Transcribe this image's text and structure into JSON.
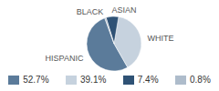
{
  "chart_data": {
    "type": "pie",
    "categories": [
      "HISPANIC",
      "WHITE",
      "ASIAN",
      "BLACK"
    ],
    "values": [
      52.7,
      39.1,
      7.4,
      0.8
    ],
    "value_labels": [
      "52.7%",
      "39.1%",
      "7.4%",
      "0.8%"
    ],
    "colors": [
      "#5b7b9a",
      "#c6d2de",
      "#2f5275",
      "#aebccb"
    ],
    "legend": "bottom"
  }
}
